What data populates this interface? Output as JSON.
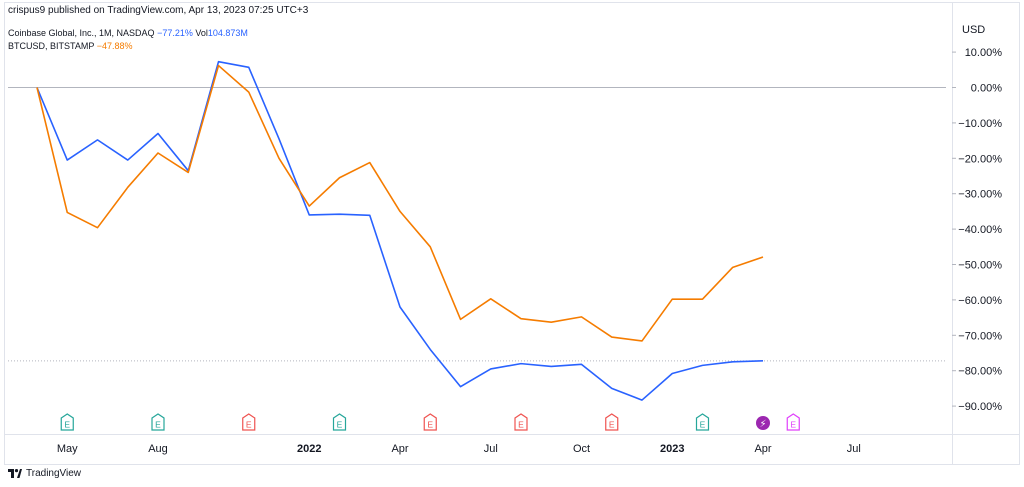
{
  "publisher": "crispus9 published on TradingView.com, Apr 13, 2023 07:25 UTC+3",
  "legend": {
    "series1_name": "Coinbase Global, Inc., 1M, NASDAQ",
    "series1_pct": "−77.21%",
    "series1_vol": "Vol104.873M",
    "series1_vol_label": "Vol",
    "series1_vol_value": "104.873M",
    "series2_name": "BTCUSD, BITSTAMP",
    "series2_pct": "−47.88%"
  },
  "currency": "USD",
  "footer": "TradingView",
  "colors": {
    "coin": "#2962ff",
    "btc": "#f57c00",
    "earnings_past_green": "#26a69a",
    "earnings_past_red": "#ef5350",
    "earnings_future": "#e040fb",
    "dividend": "#9c27b0"
  },
  "chart_data": {
    "type": "line",
    "x": [
      "Apr 2021",
      "May 2021",
      "Jun 2021",
      "Jul 2021",
      "Aug 2021",
      "Sep 2021",
      "Oct 2021",
      "Nov 2021",
      "Dec 2021",
      "Jan 2022",
      "Feb 2022",
      "Mar 2022",
      "Apr 2022",
      "May 2022",
      "Jun 2022",
      "Jul 2022",
      "Aug 2022",
      "Sep 2022",
      "Oct 2022",
      "Nov 2022",
      "Dec 2022",
      "Jan 2023",
      "Feb 2023",
      "Mar 2023",
      "Apr 2023"
    ],
    "series": [
      {
        "name": "Coinbase Global, Inc., 1M, NASDAQ",
        "color": "#2962ff",
        "values": [
          0,
          -20.5,
          -14.8,
          -20.5,
          -13,
          -23.5,
          7.3,
          5.7,
          -14.5,
          -36,
          -35.8,
          -36.1,
          -62,
          -74,
          -84.5,
          -79.5,
          -78,
          -78.8,
          -78.2,
          -85,
          -88.3,
          -80.8,
          -78.5,
          -77.5,
          -77.21
        ]
      },
      {
        "name": "BTCUSD, BITSTAMP",
        "color": "#f57c00",
        "values": [
          0,
          -35.3,
          -39.6,
          -28.2,
          -18.5,
          -24,
          6.2,
          -1.3,
          -20,
          -33.5,
          -25.5,
          -21.2,
          -35,
          -45,
          -65.5,
          -59.7,
          -65.3,
          -66.3,
          -64.8,
          -70.5,
          -71.6,
          -59.8,
          -59.8,
          -50.8,
          -47.88
        ]
      }
    ],
    "y_ticks": [
      "10.00%",
      "0.00%",
      "−10.00%",
      "−20.00%",
      "−30.00%",
      "−40.00%",
      "−50.00%",
      "−60.00%",
      "−70.00%",
      "−80.00%",
      "−90.00%"
    ],
    "y_tick_values": [
      10,
      0,
      -10,
      -20,
      -30,
      -40,
      -50,
      -60,
      -70,
      -80,
      -90
    ],
    "x_ticks": [
      {
        "label": "May",
        "x": "May 2021",
        "bold": false
      },
      {
        "label": "Aug",
        "x": "Aug 2021",
        "bold": false
      },
      {
        "label": "2022",
        "x": "Jan 2022",
        "bold": true
      },
      {
        "label": "Apr",
        "x": "Apr 2022",
        "bold": false
      },
      {
        "label": "Jul",
        "x": "Jul 2022",
        "bold": false
      },
      {
        "label": "Oct",
        "x": "Oct 2022",
        "bold": false
      },
      {
        "label": "2023",
        "x": "Jan 2023",
        "bold": true
      },
      {
        "label": "Apr",
        "x": "Apr 2023",
        "bold": false
      },
      {
        "label": "Jul",
        "x": "Jul 2023",
        "bold": false
      }
    ],
    "ylim": [
      -100,
      13
    ],
    "baseline_value": 0,
    "last_value_line": -77.21,
    "events": [
      {
        "x": "May 2021",
        "kind": "earnings",
        "status": "beat",
        "label": "E"
      },
      {
        "x": "Aug 2021",
        "kind": "earnings",
        "status": "beat",
        "label": "E"
      },
      {
        "x": "Nov 2021",
        "kind": "earnings",
        "status": "miss",
        "label": "E"
      },
      {
        "x": "Feb 2022",
        "kind": "earnings",
        "status": "beat",
        "label": "E"
      },
      {
        "x": "May 2022",
        "kind": "earnings",
        "status": "miss",
        "label": "E"
      },
      {
        "x": "Aug 2022",
        "kind": "earnings",
        "status": "miss",
        "label": "E"
      },
      {
        "x": "Nov 2022",
        "kind": "earnings",
        "status": "miss",
        "label": "E"
      },
      {
        "x": "Feb 2023",
        "kind": "earnings",
        "status": "beat",
        "label": "E"
      },
      {
        "x": "Apr 2023",
        "kind": "dividend",
        "status": "",
        "label": "⚡"
      },
      {
        "x": "May 2023",
        "kind": "earnings",
        "status": "upcoming",
        "label": "E"
      }
    ]
  }
}
